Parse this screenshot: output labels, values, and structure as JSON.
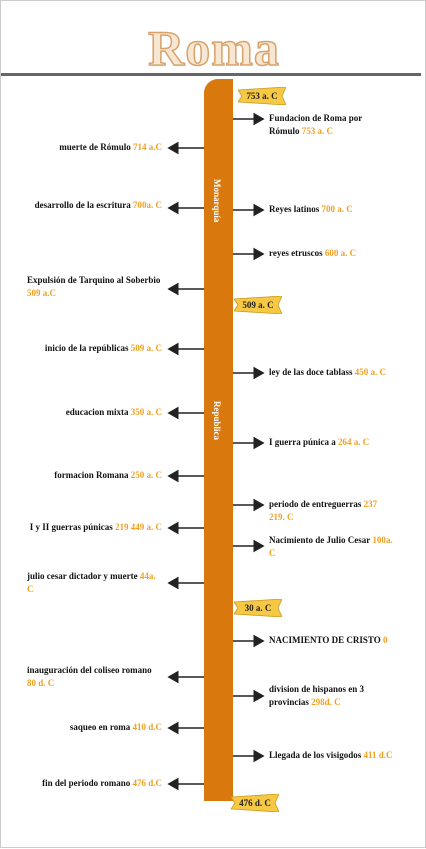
{
  "title": "Roma",
  "periods": [
    "Monarquía",
    "Republica"
  ],
  "banners": [
    "753 a. C",
    "509 a. C",
    "30 a. C",
    "476 d. C"
  ],
  "events": [
    {
      "text": "Fundacion de Roma por Rómulo",
      "date": "753 a. C"
    },
    {
      "text": "muerte de Rómulo",
      "date": "714 a.C"
    },
    {
      "text": "desarrollo de la escritura",
      "date": "700a. C"
    },
    {
      "text": "Reyes latinos",
      "date": "700 a. C"
    },
    {
      "text": "reyes etruscos",
      "date": "600 a. C"
    },
    {
      "text": "Expulsión de Tarquino al Soberbio",
      "date": "509 a.C"
    },
    {
      "text": "inicio de la repúblicas",
      "date": "509 a. C"
    },
    {
      "text": "ley de las doce tablass",
      "date": "450 a. C"
    },
    {
      "text": "educacion mixta",
      "date": "350 a. C"
    },
    {
      "text": "I guerra púnica a",
      "date": "264 a. C"
    },
    {
      "text": "formacion Romana",
      "date": "250 a. C"
    },
    {
      "text": "periodo de entreguerras",
      "date": "237 219. C"
    },
    {
      "text": "I y II guerras púnicas",
      "date": "219 449 a. C"
    },
    {
      "text": "Nacimiento de Julio Cesar",
      "date": "100a. C"
    },
    {
      "text": "julio cesar dictador y muerte",
      "date": "44a. C"
    },
    {
      "text": "NACIMIENTO DE CRISTO",
      "date": "0"
    },
    {
      "text": "inauguración del coliseo romano",
      "date": "80 d. C"
    },
    {
      "text": "division de hispanos en 3 provincias",
      "date": "298d. C"
    },
    {
      "text": "saqueo en roma",
      "date": "410 d.C"
    },
    {
      "text": "Llegada de los visigodos",
      "date": "411 d.C"
    },
    {
      "text": "fin del periodo romano",
      "date": "476 d.C"
    }
  ]
}
